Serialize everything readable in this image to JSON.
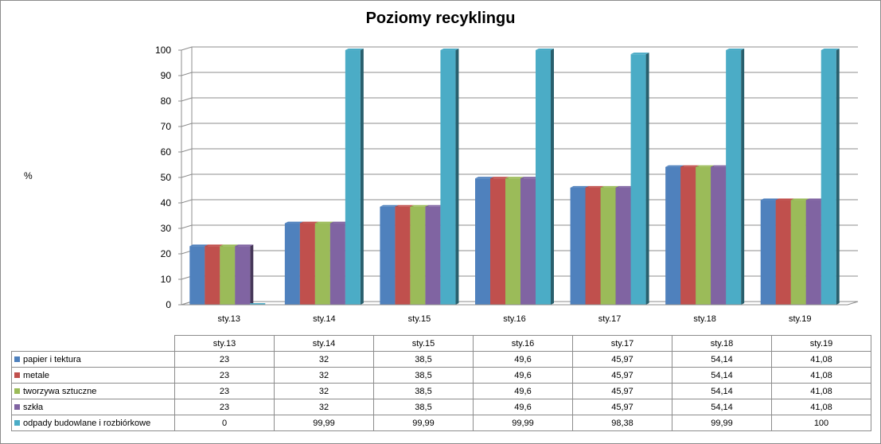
{
  "chart_data": {
    "type": "bar",
    "title": "Poziomy recyklingu",
    "ylabel": "%",
    "xlabel": "",
    "ylim": [
      0,
      100
    ],
    "yticks": [
      0,
      10,
      20,
      30,
      40,
      50,
      60,
      70,
      80,
      90,
      100
    ],
    "grid": true,
    "legend": "data-table",
    "categories": [
      "sty.13",
      "sty.14",
      "sty.15",
      "sty.16",
      "sty.17",
      "sty.18",
      "sty.19"
    ],
    "series": [
      {
        "name": "papier i tektura",
        "color": "#4f81bd",
        "values": [
          23,
          32,
          38.5,
          49.6,
          45.97,
          54.14,
          41.08
        ],
        "labels": [
          "23",
          "32",
          "38,5",
          "49,6",
          "45,97",
          "54,14",
          "41,08"
        ]
      },
      {
        "name": "metale",
        "color": "#c0504d",
        "values": [
          23,
          32,
          38.5,
          49.6,
          45.97,
          54.14,
          41.08
        ],
        "labels": [
          "23",
          "32",
          "38,5",
          "49,6",
          "45,97",
          "54,14",
          "41,08"
        ]
      },
      {
        "name": "tworzywa sztuczne",
        "color": "#9bbb59",
        "values": [
          23,
          32,
          38.5,
          49.6,
          45.97,
          54.14,
          41.08
        ],
        "labels": [
          "23",
          "32",
          "38,5",
          "49,6",
          "45,97",
          "54,14",
          "41,08"
        ]
      },
      {
        "name": "szkła",
        "color": "#8064a2",
        "values": [
          23,
          32,
          38.5,
          49.6,
          45.97,
          54.14,
          41.08
        ],
        "labels": [
          "23",
          "32",
          "38,5",
          "49,6",
          "45,97",
          "54,14",
          "41,08"
        ]
      },
      {
        "name": "odpady budowlane i rozbiórkowe",
        "color": "#4bacc6",
        "values": [
          0,
          99.99,
          99.99,
          99.99,
          98.38,
          99.99,
          100
        ],
        "labels": [
          "0",
          "99,99",
          "99,99",
          "99,99",
          "98,38",
          "99,99",
          "100"
        ]
      }
    ]
  }
}
